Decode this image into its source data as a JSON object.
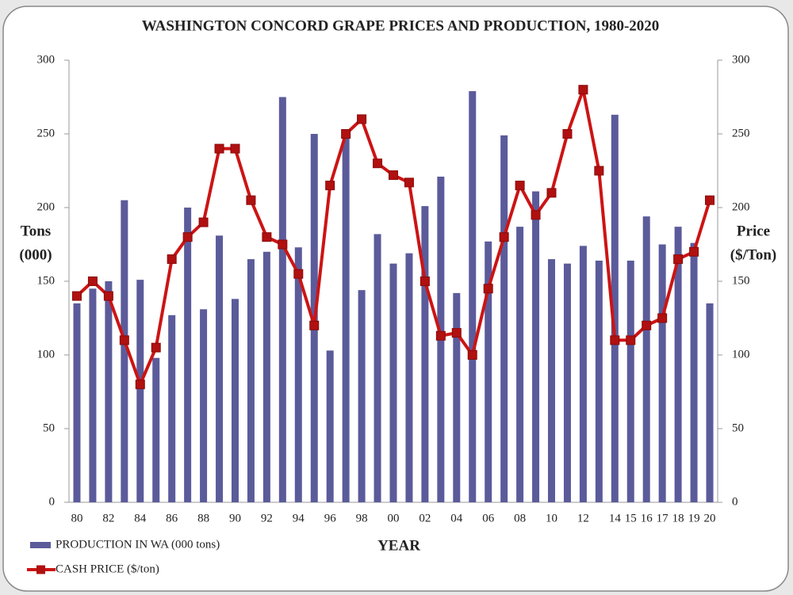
{
  "chart_data": {
    "type": "bar-line",
    "title": "WASHINGTON CONCORD GRAPE PRICES AND PRODUCTION, 1980-2020",
    "y_label_lines": [
      "Tons",
      "(000)"
    ],
    "y2_label_lines": [
      "Price",
      "($/Ton)"
    ],
    "x_label": "YEAR",
    "categories": [
      "80",
      null,
      "82",
      null,
      "84",
      null,
      "86",
      null,
      "88",
      null,
      "90",
      null,
      "92",
      null,
      "94",
      null,
      "96",
      null,
      "98",
      null,
      "00",
      null,
      "02",
      null,
      "04",
      null,
      "06",
      null,
      "08",
      null,
      "10",
      null,
      "12",
      null,
      "14",
      "15",
      "16",
      "17",
      "18",
      "19",
      "20"
    ],
    "series": [
      {
        "name": "PRODUCTION IN WA (000 tons)",
        "type": "bar",
        "color": "#5b5b9b",
        "values": [
          135,
          145,
          150,
          205,
          151,
          98,
          127,
          200,
          131,
          181,
          138,
          165,
          170,
          275,
          173,
          250,
          103,
          250,
          144,
          182,
          162,
          169,
          201,
          221,
          142,
          279,
          177,
          249,
          187,
          211,
          165,
          162,
          174,
          164,
          263,
          164,
          194,
          175,
          187,
          176,
          135
        ]
      },
      {
        "name": "CASH PRICE ($/ton)",
        "type": "line",
        "axis": "y2",
        "color": "#cc1414",
        "values": [
          140,
          150,
          140,
          110,
          80,
          105,
          165,
          180,
          190,
          240,
          240,
          205,
          180,
          175,
          155,
          120,
          215,
          250,
          260,
          230,
          222,
          217,
          150,
          113,
          115,
          100,
          145,
          180,
          215,
          195,
          210,
          250,
          280,
          225,
          110,
          110,
          120,
          125,
          165,
          170,
          205
        ]
      }
    ],
    "ylim": [
      0,
      300
    ],
    "yticks": [
      0,
      50,
      100,
      150,
      200,
      250,
      300
    ],
    "y2lim": [
      0,
      300
    ],
    "y2ticks": [
      0,
      50,
      100,
      150,
      200,
      250,
      300
    ]
  }
}
